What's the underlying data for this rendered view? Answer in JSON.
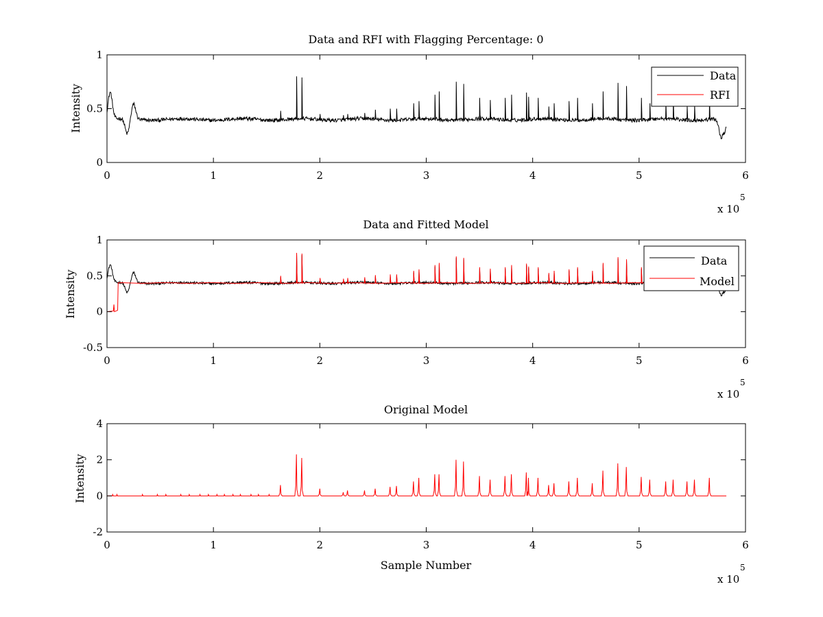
{
  "chart_data": [
    {
      "type": "line",
      "title": "Data and RFI with Flagging Percentage: 0",
      "ylabel": "Intensity",
      "xlabel": "",
      "xlim": [
        0,
        600000
      ],
      "ylim": [
        0,
        1
      ],
      "xticks": [
        0,
        1,
        2,
        3,
        4,
        5,
        6
      ],
      "yticks": [
        0,
        0.5,
        1
      ],
      "x_multiplier": "x 10",
      "x_multiplier_exp": "5",
      "grid": false,
      "legend_position": "top-right",
      "series": [
        {
          "name": "Data",
          "color": "#000000",
          "baseline": 0.4,
          "spikes": [
            [
              163000,
              0.48
            ],
            [
              178000,
              0.8
            ],
            [
              183000,
              0.79
            ],
            [
              200000,
              0.45
            ],
            [
              222000,
              0.44
            ],
            [
              226000,
              0.45
            ],
            [
              242000,
              0.46
            ],
            [
              252000,
              0.49
            ],
            [
              266000,
              0.5
            ],
            [
              272000,
              0.5
            ],
            [
              288000,
              0.55
            ],
            [
              293000,
              0.57
            ],
            [
              308000,
              0.63
            ],
            [
              312000,
              0.66
            ],
            [
              328000,
              0.75
            ],
            [
              335000,
              0.73
            ],
            [
              350000,
              0.6
            ],
            [
              360000,
              0.58
            ],
            [
              374000,
              0.6
            ],
            [
              380000,
              0.63
            ],
            [
              394000,
              0.65
            ],
            [
              396000,
              0.61
            ],
            [
              405000,
              0.6
            ],
            [
              415000,
              0.52
            ],
            [
              420000,
              0.55
            ],
            [
              434000,
              0.57
            ],
            [
              442000,
              0.6
            ],
            [
              456000,
              0.55
            ],
            [
              466000,
              0.66
            ],
            [
              480000,
              0.74
            ],
            [
              488000,
              0.71
            ],
            [
              502000,
              0.6
            ],
            [
              510000,
              0.55
            ],
            [
              525000,
              0.56
            ],
            [
              532000,
              0.6
            ],
            [
              545000,
              0.52
            ],
            [
              552000,
              0.53
            ],
            [
              566000,
              0.59
            ]
          ],
          "dips": [
            [
              3000,
              0.65
            ],
            [
              19000,
              0.26
            ],
            [
              25000,
              0.54
            ],
            [
              577000,
              0.24
            ],
            [
              581000,
              0.31
            ]
          ]
        },
        {
          "name": "RFI",
          "color": "#ff0000"
        }
      ]
    },
    {
      "type": "line",
      "title": "Data and Fitted Model",
      "ylabel": "Intensity",
      "xlabel": "",
      "xlim": [
        0,
        600000
      ],
      "ylim": [
        -0.5,
        1
      ],
      "xticks": [
        0,
        1,
        2,
        3,
        4,
        5,
        6
      ],
      "yticks": [
        -0.5,
        0,
        0.5,
        1
      ],
      "x_multiplier": "x 10",
      "x_multiplier_exp": "5",
      "grid": false,
      "legend_position": "top-right",
      "series": [
        {
          "name": "Data",
          "color": "#000000"
        },
        {
          "name": "Model",
          "color": "#ff0000"
        }
      ]
    },
    {
      "type": "line",
      "title": "Original Model",
      "ylabel": "Intensity",
      "xlabel": "Sample Number",
      "xlim": [
        0,
        600000
      ],
      "ylim": [
        -2,
        4
      ],
      "xticks": [
        0,
        1,
        2,
        3,
        4,
        5,
        6
      ],
      "yticks": [
        -2,
        0,
        2,
        4
      ],
      "x_multiplier": "x 10",
      "x_multiplier_exp": "5",
      "grid": false,
      "legend_position": "none",
      "series": [
        {
          "name": "",
          "color": "#ff0000",
          "baseline": 0,
          "spikes": [
            [
              163000,
              0.6
            ],
            [
              178000,
              2.3
            ],
            [
              183000,
              2.1
            ],
            [
              200000,
              0.4
            ],
            [
              222000,
              0.2
            ],
            [
              226000,
              0.3
            ],
            [
              242000,
              0.3
            ],
            [
              252000,
              0.4
            ],
            [
              266000,
              0.5
            ],
            [
              272000,
              0.55
            ],
            [
              288000,
              0.8
            ],
            [
              293000,
              1.0
            ],
            [
              308000,
              1.2
            ],
            [
              312000,
              1.2
            ],
            [
              328000,
              2.0
            ],
            [
              335000,
              1.9
            ],
            [
              350000,
              1.1
            ],
            [
              360000,
              0.9
            ],
            [
              374000,
              1.1
            ],
            [
              380000,
              1.2
            ],
            [
              394000,
              1.3
            ],
            [
              396000,
              1.0
            ],
            [
              405000,
              1.0
            ],
            [
              415000,
              0.6
            ],
            [
              420000,
              0.7
            ],
            [
              434000,
              0.8
            ],
            [
              442000,
              1.0
            ],
            [
              456000,
              0.7
            ],
            [
              466000,
              1.4
            ],
            [
              480000,
              1.8
            ],
            [
              488000,
              1.6
            ],
            [
              502000,
              1.05
            ],
            [
              510000,
              0.9
            ],
            [
              525000,
              0.8
            ],
            [
              532000,
              0.9
            ],
            [
              545000,
              0.8
            ],
            [
              552000,
              0.9
            ],
            [
              566000,
              1.0
            ]
          ]
        }
      ]
    }
  ]
}
